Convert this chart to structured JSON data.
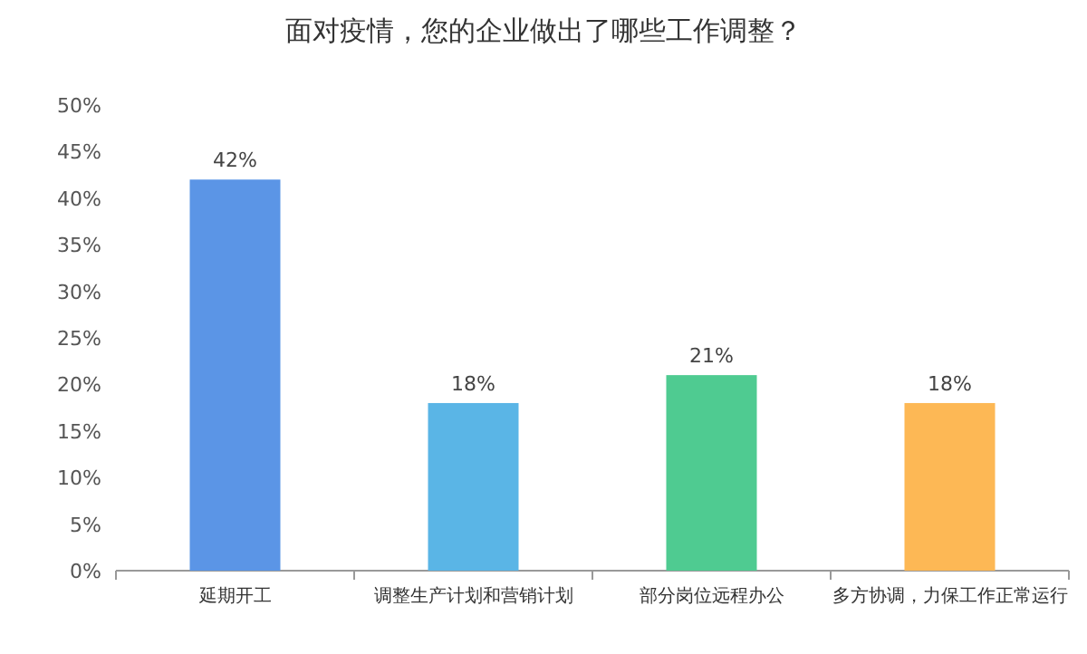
{
  "chart_data": {
    "type": "bar",
    "title": "面对疫情，您的企业做出了哪些工作调整？",
    "categories": [
      "延期开工",
      "调整生产计划和营销计划",
      "部分岗位远程办公",
      "多方协调，力保工作正常运行"
    ],
    "values": [
      42,
      18,
      21,
      18
    ],
    "value_labels": [
      "42%",
      "18%",
      "21%",
      "18%"
    ],
    "colors": [
      "#5b95e6",
      "#5ab5e6",
      "#4fcb91",
      "#fdb855"
    ],
    "ylim": [
      0,
      50
    ],
    "yticks": [
      {
        "value": 0,
        "label": "0%"
      },
      {
        "value": 5,
        "label": "5%"
      },
      {
        "value": 10,
        "label": "10%"
      },
      {
        "value": 15,
        "label": "15%"
      },
      {
        "value": 20,
        "label": "20%"
      },
      {
        "value": 25,
        "label": "25%"
      },
      {
        "value": 30,
        "label": "30%"
      },
      {
        "value": 35,
        "label": "35%"
      },
      {
        "value": 40,
        "label": "40%"
      },
      {
        "value": 45,
        "label": "45%"
      },
      {
        "value": 50,
        "label": "50%"
      }
    ],
    "grid": false
  }
}
